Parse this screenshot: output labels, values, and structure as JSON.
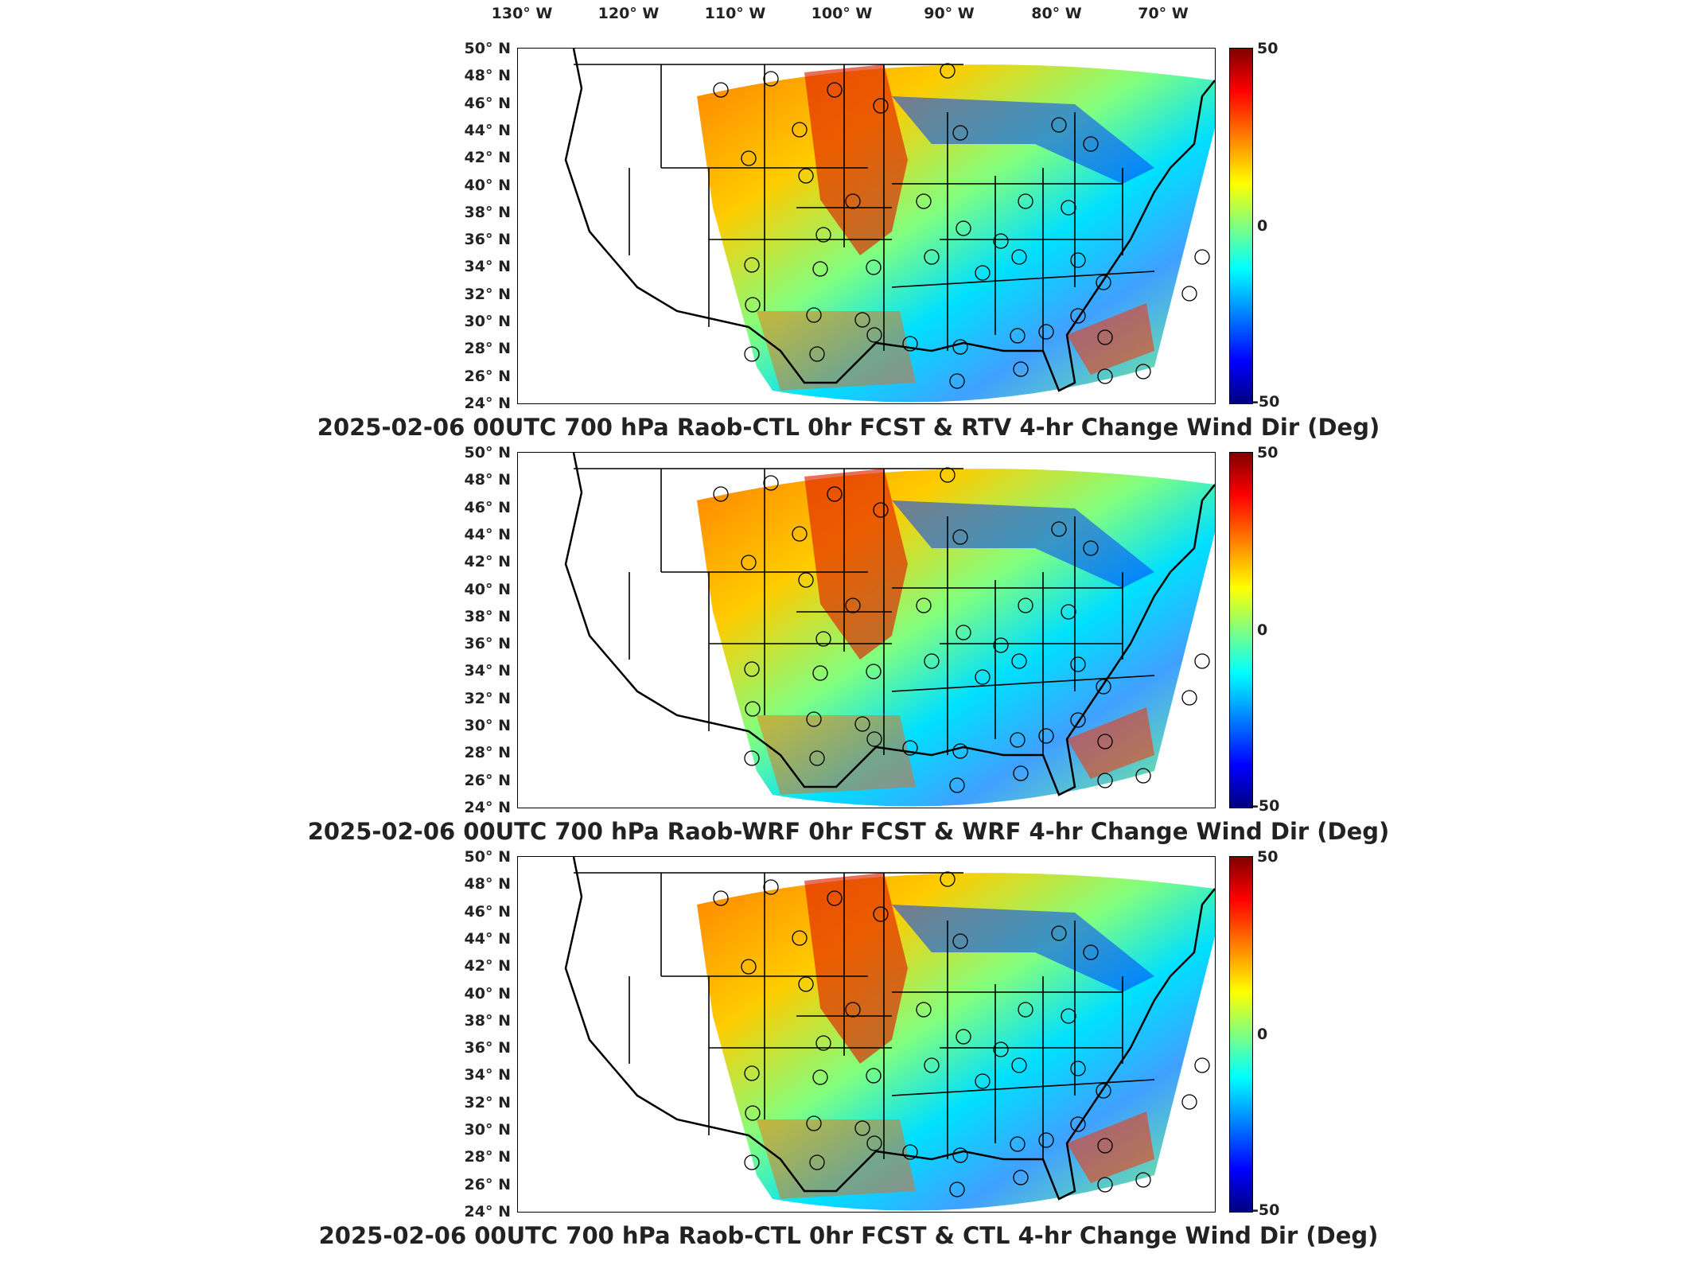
{
  "longitude_labels": [
    "130° W",
    "120° W",
    "110° W",
    "100° W",
    "90° W",
    "80° W",
    "70° W"
  ],
  "latitude_labels": [
    "50° N",
    "48° N",
    "46° N",
    "44° N",
    "42° N",
    "40° N",
    "38° N",
    "36° N",
    "34° N",
    "32° N",
    "30° N",
    "28° N",
    "26° N",
    "24° N"
  ],
  "colorbar": {
    "max_label": "50",
    "mid_label": "0",
    "min_label": "-50"
  },
  "panels": [
    {
      "title": "2025-02-06 00UTC 700 hPa Raob-CTL 0hr FCST & RTV 4-hr Change Wind Dir (Deg)"
    },
    {
      "title": "2025-02-06 00UTC 700 hPa Raob-WRF 0hr FCST & WRF 4-hr Change Wind Dir (Deg)"
    },
    {
      "title": "2025-02-06 00UTC 700 hPa Raob-CTL 0hr FCST & CTL 4-hr Change Wind Dir (Deg)"
    }
  ],
  "colors": {
    "max": "#800000",
    "zero": "#80ff80",
    "min": "#000080"
  }
}
